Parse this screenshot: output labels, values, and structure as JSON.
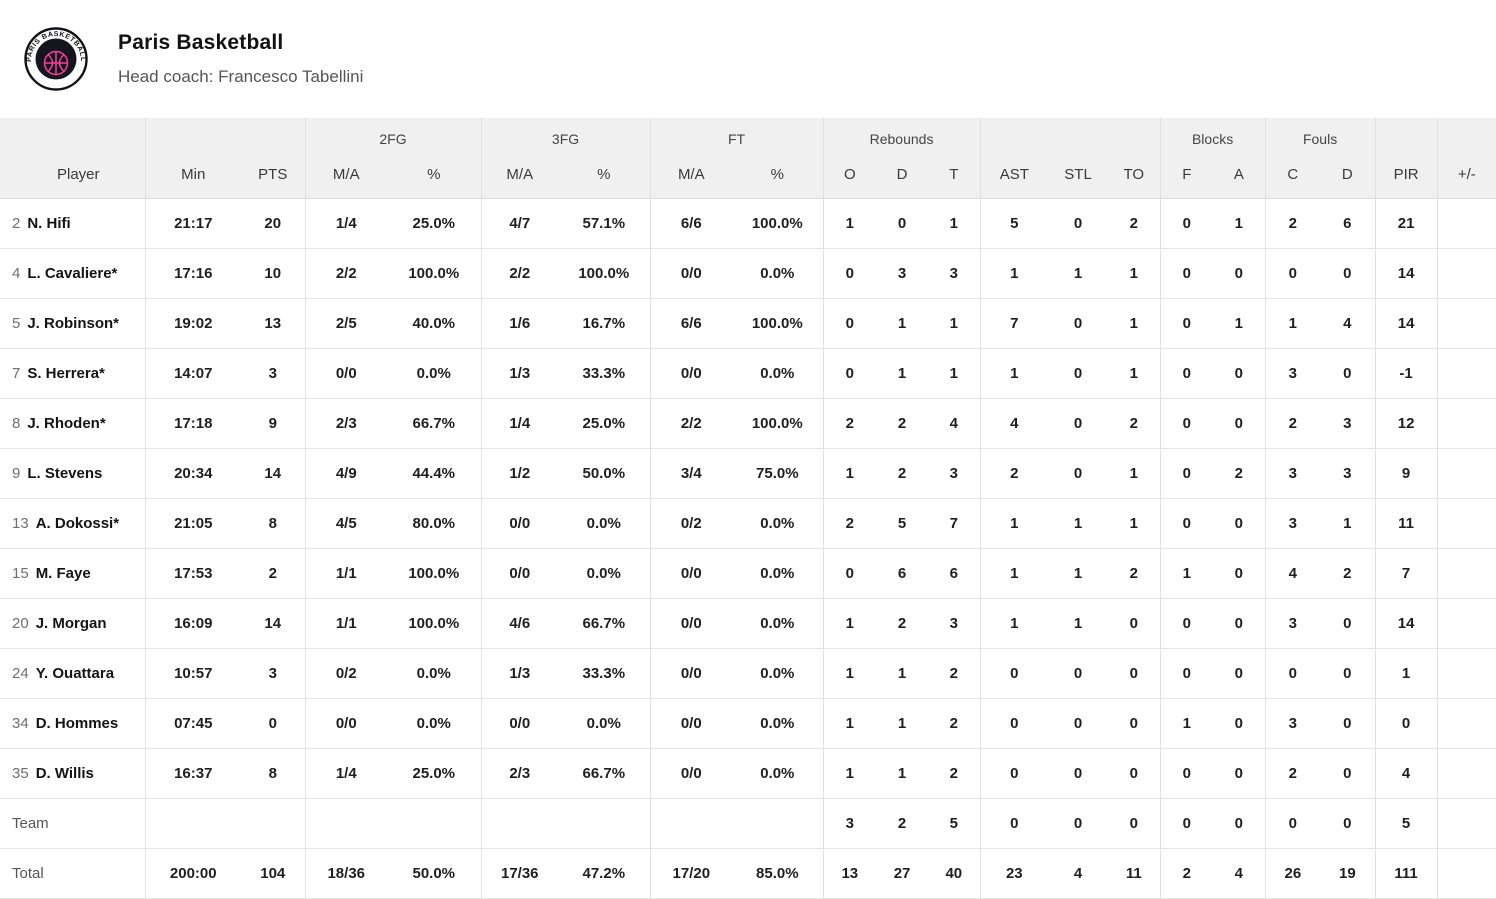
{
  "header": {
    "team_name": "Paris Basketball",
    "coach_line": "Head coach: Francesco Tabellini",
    "logo_text": "PARIS BASKETBALL",
    "logo_colors": {
      "ring": "#111118",
      "ball_accent": "#ff3d9a",
      "disc": "#15151f"
    }
  },
  "table": {
    "groups": [
      {
        "label": "",
        "span": 1
      },
      {
        "label": "",
        "span": 2
      },
      {
        "label": "2FG",
        "span": 2
      },
      {
        "label": "3FG",
        "span": 2
      },
      {
        "label": "FT",
        "span": 2
      },
      {
        "label": "Rebounds",
        "span": 3
      },
      {
        "label": "",
        "span": 3
      },
      {
        "label": "Blocks",
        "span": 2
      },
      {
        "label": "Fouls",
        "span": 2
      },
      {
        "label": "",
        "span": 1
      },
      {
        "label": "",
        "span": 1
      }
    ],
    "columns": [
      "Player",
      "Min",
      "PTS",
      "M/A",
      "%",
      "M/A",
      "%",
      "M/A",
      "%",
      "O",
      "D",
      "T",
      "AST",
      "STL",
      "TO",
      "F",
      "A",
      "C",
      "D",
      "PIR",
      "+/-"
    ],
    "rows": [
      {
        "num": "2",
        "name": "N. Hifi",
        "stats": [
          "21:17",
          "20",
          "1/4",
          "25.0%",
          "4/7",
          "57.1%",
          "6/6",
          "100.0%",
          "1",
          "0",
          "1",
          "5",
          "0",
          "2",
          "0",
          "1",
          "2",
          "6",
          "21",
          ""
        ]
      },
      {
        "num": "4",
        "name": "L. Cavaliere*",
        "stats": [
          "17:16",
          "10",
          "2/2",
          "100.0%",
          "2/2",
          "100.0%",
          "0/0",
          "0.0%",
          "0",
          "3",
          "3",
          "1",
          "1",
          "1",
          "0",
          "0",
          "0",
          "0",
          "14",
          ""
        ]
      },
      {
        "num": "5",
        "name": "J. Robinson*",
        "stats": [
          "19:02",
          "13",
          "2/5",
          "40.0%",
          "1/6",
          "16.7%",
          "6/6",
          "100.0%",
          "0",
          "1",
          "1",
          "7",
          "0",
          "1",
          "0",
          "1",
          "1",
          "4",
          "14",
          ""
        ]
      },
      {
        "num": "7",
        "name": "S. Herrera*",
        "stats": [
          "14:07",
          "3",
          "0/0",
          "0.0%",
          "1/3",
          "33.3%",
          "0/0",
          "0.0%",
          "0",
          "1",
          "1",
          "1",
          "0",
          "1",
          "0",
          "0",
          "3",
          "0",
          "-1",
          ""
        ]
      },
      {
        "num": "8",
        "name": "J. Rhoden*",
        "stats": [
          "17:18",
          "9",
          "2/3",
          "66.7%",
          "1/4",
          "25.0%",
          "2/2",
          "100.0%",
          "2",
          "2",
          "4",
          "4",
          "0",
          "2",
          "0",
          "0",
          "2",
          "3",
          "12",
          ""
        ]
      },
      {
        "num": "9",
        "name": "L. Stevens",
        "stats": [
          "20:34",
          "14",
          "4/9",
          "44.4%",
          "1/2",
          "50.0%",
          "3/4",
          "75.0%",
          "1",
          "2",
          "3",
          "2",
          "0",
          "1",
          "0",
          "2",
          "3",
          "3",
          "9",
          ""
        ]
      },
      {
        "num": "13",
        "name": "A. Dokossi*",
        "stats": [
          "21:05",
          "8",
          "4/5",
          "80.0%",
          "0/0",
          "0.0%",
          "0/2",
          "0.0%",
          "2",
          "5",
          "7",
          "1",
          "1",
          "1",
          "0",
          "0",
          "3",
          "1",
          "11",
          ""
        ]
      },
      {
        "num": "15",
        "name": "M. Faye",
        "stats": [
          "17:53",
          "2",
          "1/1",
          "100.0%",
          "0/0",
          "0.0%",
          "0/0",
          "0.0%",
          "0",
          "6",
          "6",
          "1",
          "1",
          "2",
          "1",
          "0",
          "4",
          "2",
          "7",
          ""
        ]
      },
      {
        "num": "20",
        "name": "J. Morgan",
        "stats": [
          "16:09",
          "14",
          "1/1",
          "100.0%",
          "4/6",
          "66.7%",
          "0/0",
          "0.0%",
          "1",
          "2",
          "3",
          "1",
          "1",
          "0",
          "0",
          "0",
          "3",
          "0",
          "14",
          ""
        ]
      },
      {
        "num": "24",
        "name": "Y. Ouattara",
        "stats": [
          "10:57",
          "3",
          "0/2",
          "0.0%",
          "1/3",
          "33.3%",
          "0/0",
          "0.0%",
          "1",
          "1",
          "2",
          "0",
          "0",
          "0",
          "0",
          "0",
          "0",
          "0",
          "1",
          ""
        ]
      },
      {
        "num": "34",
        "name": "D. Hommes",
        "stats": [
          "07:45",
          "0",
          "0/0",
          "0.0%",
          "0/0",
          "0.0%",
          "0/0",
          "0.0%",
          "1",
          "1",
          "2",
          "0",
          "0",
          "0",
          "1",
          "0",
          "3",
          "0",
          "0",
          ""
        ]
      },
      {
        "num": "35",
        "name": "D. Willis",
        "stats": [
          "16:37",
          "8",
          "1/4",
          "25.0%",
          "2/3",
          "66.7%",
          "0/0",
          "0.0%",
          "1",
          "1",
          "2",
          "0",
          "0",
          "0",
          "0",
          "0",
          "2",
          "0",
          "4",
          ""
        ]
      }
    ],
    "team_row": {
      "label": "Team",
      "stats": [
        "",
        "",
        "",
        "",
        "",
        "",
        "",
        "",
        "3",
        "2",
        "5",
        "0",
        "0",
        "0",
        "0",
        "0",
        "0",
        "0",
        "5",
        ""
      ]
    },
    "total_row": {
      "label": "Total",
      "stats": [
        "200:00",
        "104",
        "18/36",
        "50.0%",
        "17/36",
        "47.2%",
        "17/20",
        "85.0%",
        "13",
        "27",
        "40",
        "23",
        "4",
        "11",
        "2",
        "4",
        "26",
        "19",
        "111",
        ""
      ]
    }
  }
}
